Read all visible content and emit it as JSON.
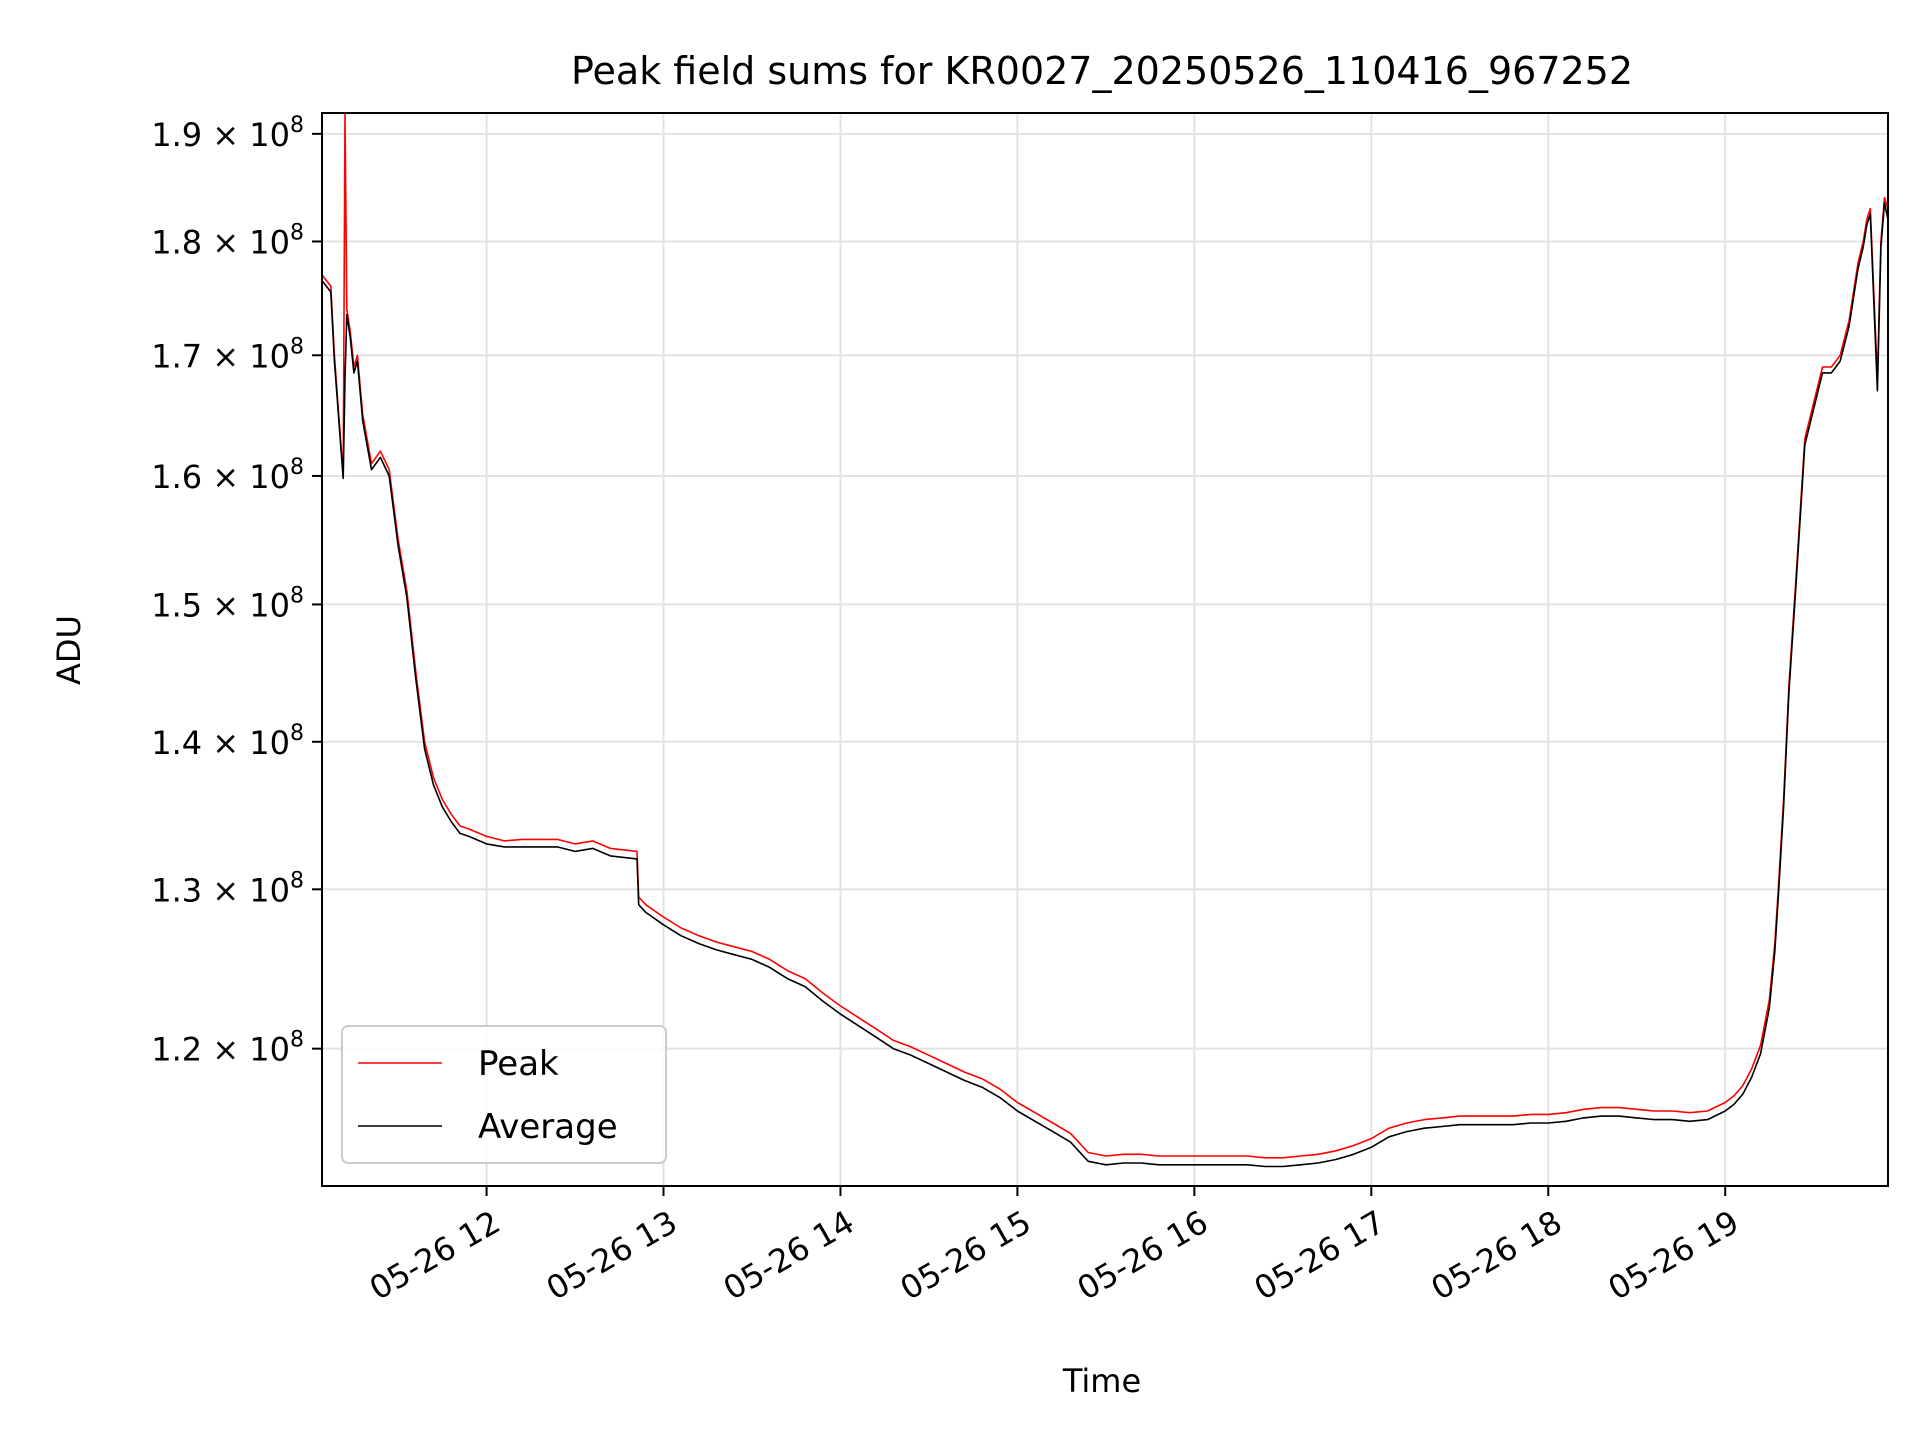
{
  "chart_data": {
    "type": "line",
    "title": "Peak field sums for KR0027_20250526_110416_967252",
    "xlabel": "Time",
    "ylabel": "ADU",
    "yscale": "log",
    "grid": true,
    "legend_position": "lower-left",
    "xlim_hours": [
      11.07,
      19.92
    ],
    "ylim": [
      112000000,
      192000000
    ],
    "x_ticks": [
      {
        "value": 12,
        "label": "05-26 12"
      },
      {
        "value": 13,
        "label": "05-26 13"
      },
      {
        "value": 14,
        "label": "05-26 14"
      },
      {
        "value": 15,
        "label": "05-26 15"
      },
      {
        "value": 16,
        "label": "05-26 16"
      },
      {
        "value": 17,
        "label": "05-26 17"
      },
      {
        "value": 18,
        "label": "05-26 18"
      },
      {
        "value": 19,
        "label": "05-26 19"
      }
    ],
    "y_ticks": [
      {
        "value": 120000000,
        "mantissa": "1.2",
        "base": "10",
        "exponent": "8"
      },
      {
        "value": 130000000,
        "mantissa": "1.3",
        "base": "10",
        "exponent": "8"
      },
      {
        "value": 140000000,
        "mantissa": "1.4",
        "base": "10",
        "exponent": "8"
      },
      {
        "value": 150000000,
        "mantissa": "1.5",
        "base": "10",
        "exponent": "8"
      },
      {
        "value": 160000000,
        "mantissa": "1.6",
        "base": "10",
        "exponent": "8"
      },
      {
        "value": 170000000,
        "mantissa": "1.7",
        "base": "10",
        "exponent": "8"
      },
      {
        "value": 180000000,
        "mantissa": "1.8",
        "base": "10",
        "exponent": "8"
      },
      {
        "value": 190000000,
        "mantissa": "1.9",
        "base": "10",
        "exponent": "8"
      }
    ],
    "x_hours": [
      11.07,
      11.12,
      11.14,
      11.19,
      11.2,
      11.21,
      11.23,
      11.25,
      11.27,
      11.3,
      11.35,
      11.4,
      11.45,
      11.5,
      11.55,
      11.6,
      11.65,
      11.7,
      11.75,
      11.8,
      11.85,
      11.9,
      12.0,
      12.1,
      12.2,
      12.3,
      12.4,
      12.5,
      12.6,
      12.7,
      12.85,
      12.86,
      12.9,
      13.0,
      13.1,
      13.2,
      13.3,
      13.4,
      13.5,
      13.6,
      13.7,
      13.8,
      13.9,
      14.0,
      14.1,
      14.2,
      14.3,
      14.4,
      14.5,
      14.6,
      14.7,
      14.8,
      14.9,
      15.0,
      15.1,
      15.2,
      15.3,
      15.4,
      15.5,
      15.6,
      15.7,
      15.8,
      15.9,
      16.0,
      16.1,
      16.2,
      16.3,
      16.4,
      16.5,
      16.6,
      16.7,
      16.8,
      16.9,
      17.0,
      17.1,
      17.2,
      17.3,
      17.4,
      17.5,
      17.6,
      17.7,
      17.8,
      17.9,
      18.0,
      18.1,
      18.2,
      18.3,
      18.4,
      18.5,
      18.6,
      18.7,
      18.8,
      18.9,
      19.0,
      19.05,
      19.1,
      19.15,
      19.2,
      19.25,
      19.28,
      19.3,
      19.33,
      19.36,
      19.4,
      19.45,
      19.5,
      19.55,
      19.6,
      19.65,
      19.7,
      19.75,
      19.78,
      19.8,
      19.82,
      19.86,
      19.88,
      19.9,
      19.92
    ],
    "series": [
      {
        "name": "Peak",
        "color": "#ff0000",
        "values": [
          177000000,
          176000000,
          170000000,
          160000000,
          192000000,
          174000000,
          172000000,
          169000000,
          170000000,
          165000000,
          161000000,
          162000000,
          160500000,
          155000000,
          151000000,
          145000000,
          140000000,
          137500000,
          136000000,
          135000000,
          134200000,
          134000000,
          133500000,
          133200000,
          133300000,
          133300000,
          133300000,
          133000000,
          133200000,
          132700000,
          132500000,
          129500000,
          129000000,
          128200000,
          127500000,
          127000000,
          126600000,
          126300000,
          126000000,
          125500000,
          124800000,
          124300000,
          123400000,
          122600000,
          121900000,
          121200000,
          120500000,
          120100000,
          119600000,
          119100000,
          118600000,
          118200000,
          117600000,
          116800000,
          116200000,
          115600000,
          115000000,
          113900000,
          113700000,
          113800000,
          113800000,
          113700000,
          113700000,
          113700000,
          113700000,
          113700000,
          113700000,
          113600000,
          113600000,
          113700000,
          113800000,
          114000000,
          114300000,
          114700000,
          115300000,
          115600000,
          115800000,
          115900000,
          116000000,
          116000000,
          116000000,
          116000000,
          116100000,
          116100000,
          116200000,
          116400000,
          116500000,
          116500000,
          116400000,
          116300000,
          116300000,
          116200000,
          116300000,
          116800000,
          117200000,
          117800000,
          118800000,
          120200000,
          123000000,
          126500000,
          130000000,
          136000000,
          144000000,
          152000000,
          163000000,
          166000000,
          169000000,
          169000000,
          170000000,
          173000000,
          178000000,
          180000000,
          182000000,
          183000000,
          168000000,
          180000000,
          184000000,
          183000000
        ]
      },
      {
        "name": "Average",
        "color": "#000000",
        "values": [
          176500000,
          175500000,
          169500000,
          159800000,
          168000000,
          173500000,
          171500000,
          168500000,
          169500000,
          164500000,
          160500000,
          161500000,
          160000000,
          154500000,
          150500000,
          144500000,
          139500000,
          137000000,
          135500000,
          134500000,
          133700000,
          133500000,
          133000000,
          132800000,
          132800000,
          132800000,
          132800000,
          132500000,
          132700000,
          132200000,
          132000000,
          129000000,
          128500000,
          127700000,
          127000000,
          126500000,
          126100000,
          125800000,
          125500000,
          125000000,
          124300000,
          123800000,
          122900000,
          122100000,
          121400000,
          120700000,
          120000000,
          119600000,
          119100000,
          118600000,
          118100000,
          117700000,
          117100000,
          116300000,
          115700000,
          115100000,
          114500000,
          113400000,
          113200000,
          113300000,
          113300000,
          113200000,
          113200000,
          113200000,
          113200000,
          113200000,
          113200000,
          113100000,
          113100000,
          113200000,
          113300000,
          113500000,
          113800000,
          114200000,
          114800000,
          115100000,
          115300000,
          115400000,
          115500000,
          115500000,
          115500000,
          115500000,
          115600000,
          115600000,
          115700000,
          115900000,
          116000000,
          116000000,
          115900000,
          115800000,
          115800000,
          115700000,
          115800000,
          116300000,
          116700000,
          117300000,
          118300000,
          119700000,
          122500000,
          126000000,
          129500000,
          135500000,
          143500000,
          151500000,
          162500000,
          165500000,
          168500000,
          168500000,
          169500000,
          172500000,
          177500000,
          179500000,
          181500000,
          182500000,
          167000000,
          179500000,
          183500000,
          182000000
        ]
      }
    ]
  }
}
